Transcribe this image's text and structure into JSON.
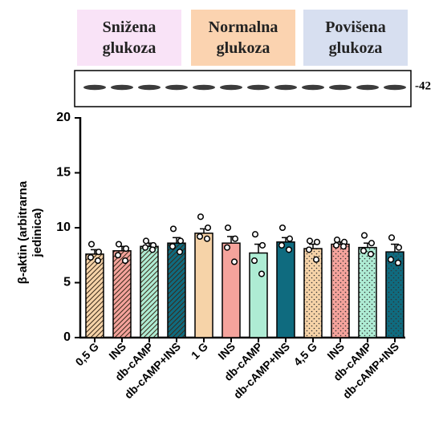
{
  "chart_data": {
    "type": "bar",
    "groups": [
      {
        "label": "Snižena glukoza",
        "color": "#f9e3f7"
      },
      {
        "label": "Normalna glukoza",
        "color": "#fbd3b0"
      },
      {
        "label": "Povišena glukoza",
        "color": "#d7dff0"
      }
    ],
    "blot_label": "-42",
    "ylabel": "β-aktin (arbitrarna jedinica)",
    "categories": [
      "0,5 G",
      "INS",
      "db-cAMP",
      "db-cAMP+INS",
      "1 G",
      "INS",
      "db-cAMP",
      "db-cAMP+INS",
      "4,5 G",
      "INS",
      "db-cAMP",
      "db-cAMP+INS"
    ],
    "values": [
      7.6,
      7.9,
      8.3,
      8.6,
      9.5,
      8.6,
      7.7,
      8.7,
      8.1,
      8.5,
      8.2,
      7.8
    ],
    "errors": [
      0.4,
      0.4,
      0.3,
      0.5,
      0.4,
      0.6,
      0.8,
      0.4,
      0.4,
      0.2,
      0.4,
      0.7
    ],
    "points": [
      [
        8.5,
        7.8,
        7.3,
        7.0
      ],
      [
        8.5,
        8.1,
        7.5,
        7.0
      ],
      [
        8.8,
        8.4,
        8.2,
        8.0
      ],
      [
        9.9,
        8.8,
        8.3,
        7.8
      ],
      [
        11.0,
        10.0,
        9.2,
        9.0
      ],
      [
        10.0,
        9.0,
        8.2,
        6.9
      ],
      [
        9.4,
        8.4,
        7.0,
        5.8
      ],
      [
        10.0,
        9.0,
        8.4,
        8.0
      ],
      [
        8.8,
        8.7,
        8.0,
        7.1
      ],
      [
        8.9,
        8.7,
        8.4,
        8.3
      ],
      [
        9.3,
        8.6,
        7.9,
        7.6
      ],
      [
        9.1,
        8.2,
        7.1,
        6.8
      ]
    ],
    "colors": [
      "#f6d3a8",
      "#f5a39c",
      "#aeecd4",
      "#0f6b7f",
      "#f6d3a8",
      "#f5a39c",
      "#aeecd4",
      "#0f6b7f",
      "#f6d3a8",
      "#f5a39c",
      "#aeecd4",
      "#0f6b7f"
    ],
    "patterns": [
      "hatch",
      "hatch",
      "hatch",
      "hatch",
      "solid",
      "solid",
      "solid",
      "solid",
      "dots",
      "dots",
      "dots",
      "dots"
    ],
    "ylim": [
      0,
      20
    ],
    "yticks": [
      0,
      5,
      10,
      15,
      20
    ]
  }
}
